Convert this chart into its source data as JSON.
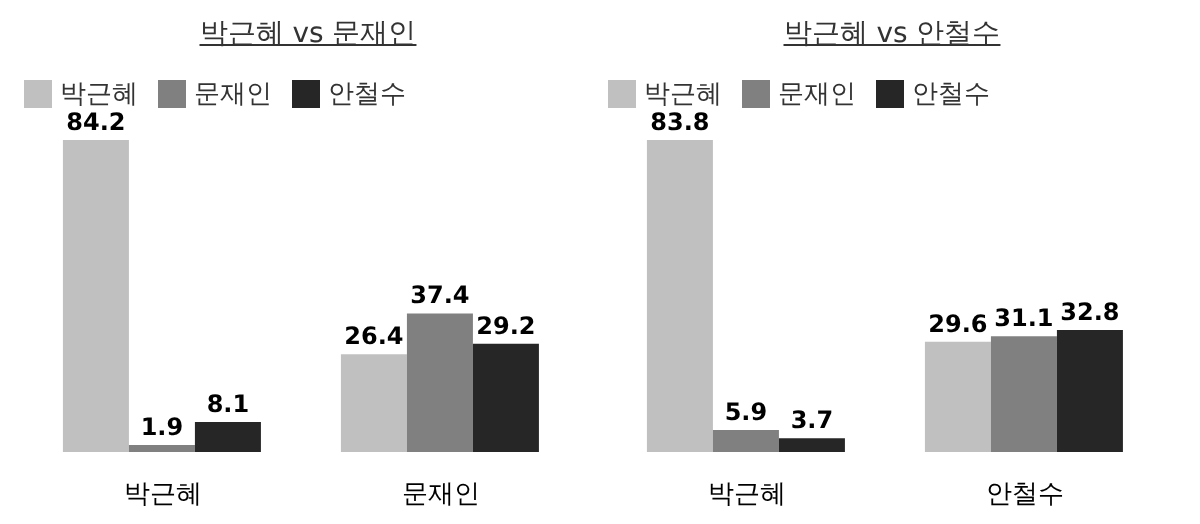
{
  "chart_data": [
    {
      "type": "bar",
      "title": "박근혜 vs 문재인",
      "categories": [
        "박근혜",
        "문재인"
      ],
      "series": [
        {
          "name": "박근혜",
          "color": "#c0c0c0",
          "values": [
            84.2,
            26.4
          ]
        },
        {
          "name": "문재인",
          "color": "#808080",
          "values": [
            1.9,
            37.4
          ]
        },
        {
          "name": "안철수",
          "color": "#262626",
          "values": [
            8.1,
            29.2
          ]
        }
      ],
      "data_labels": true,
      "legend": "top left",
      "grid": false
    },
    {
      "type": "bar",
      "title": "박근혜 vs 안철수",
      "categories": [
        "박근혜",
        "안철수"
      ],
      "series": [
        {
          "name": "박근혜",
          "color": "#c0c0c0",
          "values": [
            83.8,
            29.6
          ]
        },
        {
          "name": "문재인",
          "color": "#808080",
          "values": [
            5.9,
            31.1
          ]
        },
        {
          "name": "안철수",
          "color": "#262626",
          "values": [
            3.7,
            32.8
          ]
        }
      ],
      "data_labels": true,
      "legend": "top left",
      "grid": false
    }
  ]
}
